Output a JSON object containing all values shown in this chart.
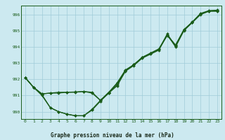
{
  "title": "Graphe pression niveau de la mer (hPa)",
  "xlabel_ticks": [
    0,
    1,
    2,
    3,
    4,
    5,
    6,
    7,
    8,
    9,
    10,
    11,
    12,
    13,
    14,
    15,
    16,
    17,
    18,
    19,
    20,
    21,
    22,
    23
  ],
  "yticks": [
    990,
    991,
    992,
    993,
    994,
    995,
    996
  ],
  "ylim": [
    989.55,
    996.55
  ],
  "xlim": [
    -0.5,
    23.5
  ],
  "bg_color": "#cce9f0",
  "grid_color": "#a0ccd8",
  "line_color": "#1a5c1a",
  "markersize": 2.0,
  "linewidth": 0.9,
  "line_data": [
    [
      992.1,
      991.5,
      991.0,
      990.25,
      990.0,
      989.85,
      989.75,
      989.75,
      990.1,
      990.65,
      991.15,
      991.6,
      992.5,
      992.85,
      993.3,
      993.55,
      993.8,
      994.75,
      994.0,
      995.0,
      995.5,
      996.0,
      996.2,
      996.2
    ],
    [
      992.1,
      991.5,
      991.05,
      990.25,
      990.0,
      989.85,
      989.75,
      989.75,
      990.15,
      990.7,
      991.2,
      991.65,
      992.55,
      992.9,
      993.35,
      993.6,
      993.85,
      994.8,
      994.05,
      995.05,
      995.52,
      996.02,
      996.22,
      996.22
    ],
    [
      992.1,
      991.5,
      991.1,
      991.15,
      991.15,
      991.2,
      991.2,
      991.25,
      991.15,
      990.7,
      991.15,
      991.75,
      992.55,
      992.9,
      993.35,
      993.6,
      993.85,
      994.7,
      994.1,
      995.05,
      995.52,
      996.05,
      996.22,
      996.25
    ],
    [
      992.1,
      991.5,
      991.1,
      991.15,
      991.2,
      991.2,
      991.22,
      991.25,
      991.2,
      990.7,
      991.2,
      991.78,
      992.58,
      992.9,
      993.35,
      993.62,
      993.88,
      994.72,
      994.12,
      995.07,
      995.54,
      996.07,
      996.24,
      996.27
    ]
  ]
}
